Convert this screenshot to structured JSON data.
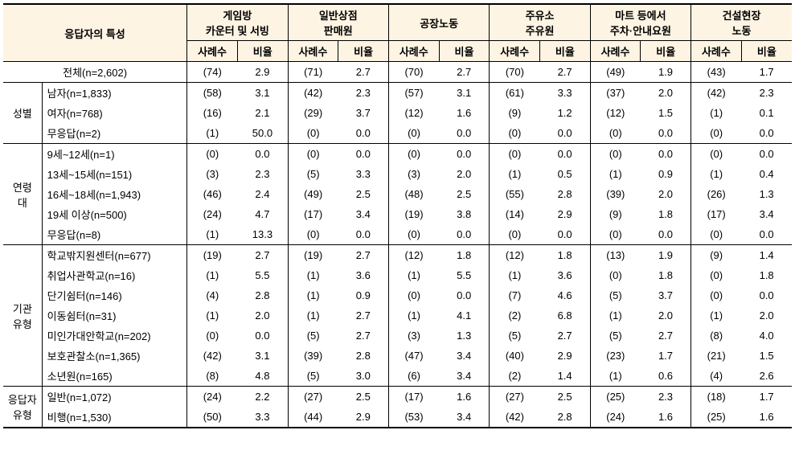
{
  "header": {
    "rowspan_label": "응답자의 특성",
    "groups": [
      {
        "line1": "게임방",
        "line2": "카운터 및 서빙"
      },
      {
        "line1": "일반상점",
        "line2": "판매원"
      },
      {
        "line1": "공장노동",
        "line2": ""
      },
      {
        "line1": "주유소",
        "line2": "주유원"
      },
      {
        "line1": "마트 등에서",
        "line2": "주차·안내요원"
      },
      {
        "line1": "건설현장",
        "line2": "노동"
      }
    ],
    "sub": {
      "count": "사례수",
      "ratio": "비율"
    }
  },
  "total": {
    "label": "전체(n=2,602)",
    "cells": [
      "(74)",
      "2.9",
      "(71)",
      "2.7",
      "(70)",
      "2.7",
      "(70)",
      "2.7",
      "(49)",
      "1.9",
      "(43)",
      "1.7"
    ]
  },
  "sections": [
    {
      "group": "성별",
      "rows": [
        {
          "label": "남자(n=1,833)",
          "cells": [
            "(58)",
            "3.1",
            "(42)",
            "2.3",
            "(57)",
            "3.1",
            "(61)",
            "3.3",
            "(37)",
            "2.0",
            "(42)",
            "2.3"
          ]
        },
        {
          "label": "여자(n=768)",
          "cells": [
            "(16)",
            "2.1",
            "(29)",
            "3.7",
            "(12)",
            "1.6",
            "(9)",
            "1.2",
            "(12)",
            "1.5",
            "(1)",
            "0.1"
          ]
        },
        {
          "label": "무응답(n=2)",
          "cells": [
            "(1)",
            "50.0",
            "(0)",
            "0.0",
            "(0)",
            "0.0",
            "(0)",
            "0.0",
            "(0)",
            "0.0",
            "(0)",
            "0.0"
          ]
        }
      ]
    },
    {
      "group": "연령대",
      "rows": [
        {
          "label": "9세~12세(n=1)",
          "cells": [
            "(0)",
            "0.0",
            "(0)",
            "0.0",
            "(0)",
            "0.0",
            "(0)",
            "0.0",
            "(0)",
            "0.0",
            "(0)",
            "0.0"
          ]
        },
        {
          "label": "13세~15세(n=151)",
          "cells": [
            "(3)",
            "2.3",
            "(5)",
            "3.3",
            "(3)",
            "2.0",
            "(1)",
            "0.5",
            "(1)",
            "0.9",
            "(1)",
            "0.4"
          ]
        },
        {
          "label": "16세~18세(n=1,943)",
          "cells": [
            "(46)",
            "2.4",
            "(49)",
            "2.5",
            "(48)",
            "2.5",
            "(55)",
            "2.8",
            "(39)",
            "2.0",
            "(26)",
            "1.3"
          ]
        },
        {
          "label": "19세 이상(n=500)",
          "cells": [
            "(24)",
            "4.7",
            "(17)",
            "3.4",
            "(19)",
            "3.8",
            "(14)",
            "2.9",
            "(9)",
            "1.8",
            "(17)",
            "3.4"
          ]
        },
        {
          "label": "무응답(n=8)",
          "cells": [
            "(1)",
            "13.3",
            "(0)",
            "0.0",
            "(0)",
            "0.0",
            "(0)",
            "0.0",
            "(0)",
            "0.0",
            "(0)",
            "0.0"
          ]
        }
      ]
    },
    {
      "group": "기관유형",
      "rows": [
        {
          "label": "학교밖지원센터(n=677)",
          "cells": [
            "(19)",
            "2.7",
            "(19)",
            "2.7",
            "(12)",
            "1.8",
            "(12)",
            "1.8",
            "(13)",
            "1.9",
            "(9)",
            "1.4"
          ]
        },
        {
          "label": "취업사관학교(n=16)",
          "cells": [
            "(1)",
            "5.5",
            "(1)",
            "3.6",
            "(1)",
            "5.5",
            "(1)",
            "3.6",
            "(0)",
            "1.8",
            "(0)",
            "1.8"
          ]
        },
        {
          "label": "단기쉼터(n=146)",
          "cells": [
            "(4)",
            "2.8",
            "(1)",
            "0.9",
            "(0)",
            "0.0",
            "(7)",
            "4.6",
            "(5)",
            "3.7",
            "(0)",
            "0.0"
          ]
        },
        {
          "label": "이동쉼터(n=31)",
          "cells": [
            "(1)",
            "2.0",
            "(1)",
            "2.7",
            "(1)",
            "4.1",
            "(2)",
            "6.8",
            "(1)",
            "2.0",
            "(1)",
            "2.0"
          ]
        },
        {
          "label": "미인가대안학교(n=202)",
          "cells": [
            "(0)",
            "0.0",
            "(5)",
            "2.7",
            "(3)",
            "1.3",
            "(5)",
            "2.7",
            "(5)",
            "2.7",
            "(8)",
            "4.0"
          ]
        },
        {
          "label": "보호관찰소(n=1,365)",
          "cells": [
            "(42)",
            "3.1",
            "(39)",
            "2.8",
            "(47)",
            "3.4",
            "(40)",
            "2.9",
            "(23)",
            "1.7",
            "(21)",
            "1.5"
          ]
        },
        {
          "label": "소년원(n=165)",
          "cells": [
            "(8)",
            "4.8",
            "(5)",
            "3.0",
            "(6)",
            "3.4",
            "(2)",
            "1.4",
            "(1)",
            "0.6",
            "(4)",
            "2.6"
          ]
        }
      ]
    },
    {
      "group": "응답자유형",
      "rows": [
        {
          "label": "일반(n=1,072)",
          "cells": [
            "(24)",
            "2.2",
            "(27)",
            "2.5",
            "(17)",
            "1.6",
            "(27)",
            "2.5",
            "(25)",
            "2.3",
            "(18)",
            "1.7"
          ]
        },
        {
          "label": "비행(n=1,530)",
          "cells": [
            "(50)",
            "3.3",
            "(44)",
            "2.9",
            "(53)",
            "3.4",
            "(42)",
            "2.8",
            "(24)",
            "1.6",
            "(25)",
            "1.6"
          ]
        }
      ]
    }
  ]
}
